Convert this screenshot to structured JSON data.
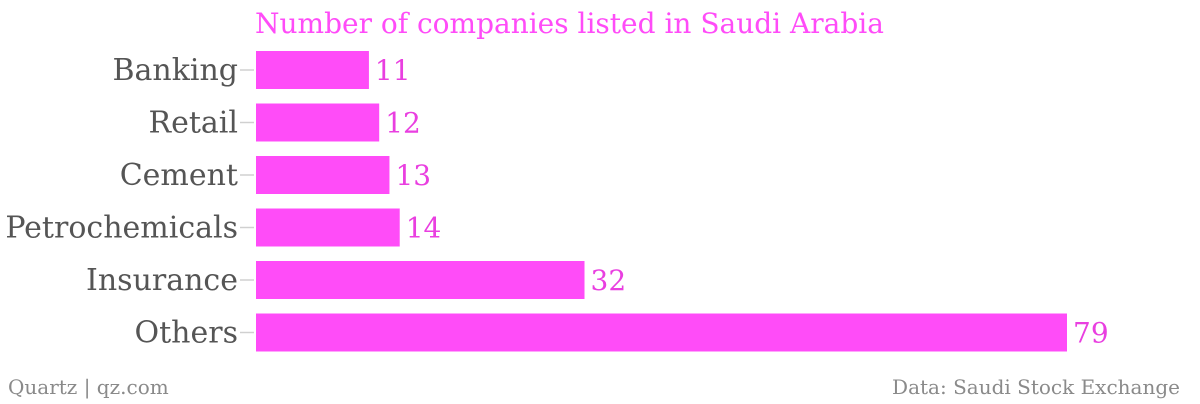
{
  "chart_data": {
    "type": "bar",
    "orientation": "horizontal",
    "title": "Number of companies listed in Saudi Arabia",
    "categories": [
      "Banking",
      "Retail",
      "Cement",
      "Petrochemicals",
      "Insurance",
      "Others"
    ],
    "values": [
      11,
      12,
      13,
      14,
      32,
      79
    ],
    "xlim": [
      0,
      79
    ],
    "grid": false,
    "legend": "none",
    "colors": {
      "bar": "#ff4cf8",
      "value_label": "#e93fe0",
      "title": "#ff4cf8",
      "category_label": "#555555",
      "footer": "#8a8a8a"
    }
  },
  "footer": {
    "source_left": "Quartz | qz.com",
    "source_right": "Data: Saudi Stock Exchange"
  }
}
